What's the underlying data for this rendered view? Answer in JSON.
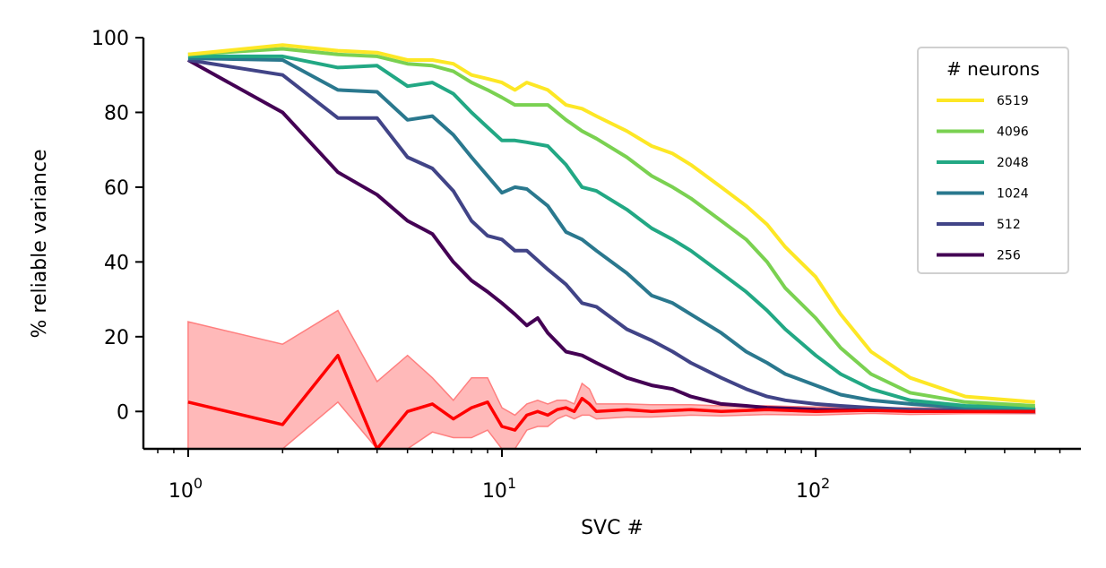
{
  "chart_data": {
    "type": "line",
    "xlabel": "SVC #",
    "ylabel": "% reliable variance",
    "xscale": "log",
    "xlim": [
      0.72,
      700
    ],
    "ylim": [
      -10,
      100
    ],
    "xticks": [
      {
        "value": 1,
        "base": "10",
        "exp": "0"
      },
      {
        "value": 10,
        "base": "10",
        "exp": "1"
      },
      {
        "value": 100,
        "base": "10",
        "exp": "2"
      }
    ],
    "yticks": [
      0,
      20,
      40,
      60,
      80,
      100
    ],
    "grid": false,
    "legend": {
      "title": "# neurons",
      "position": "top-right"
    },
    "series": [
      {
        "name": "6519",
        "color": "#fde725",
        "points": [
          [
            1,
            95.5
          ],
          [
            2,
            98
          ],
          [
            3,
            96.5
          ],
          [
            4,
            96
          ],
          [
            5,
            94
          ],
          [
            6,
            94
          ],
          [
            7,
            93
          ],
          [
            8,
            90
          ],
          [
            9,
            89
          ],
          [
            10,
            88
          ],
          [
            11,
            86
          ],
          [
            12,
            88
          ],
          [
            14,
            86
          ],
          [
            16,
            82
          ],
          [
            18,
            81
          ],
          [
            20,
            79
          ],
          [
            25,
            75
          ],
          [
            30,
            71
          ],
          [
            35,
            69
          ],
          [
            40,
            66
          ],
          [
            50,
            60
          ],
          [
            60,
            55
          ],
          [
            70,
            50
          ],
          [
            80,
            44
          ],
          [
            100,
            36
          ],
          [
            120,
            26
          ],
          [
            150,
            16
          ],
          [
            200,
            9
          ],
          [
            300,
            4
          ],
          [
            500,
            2.5
          ]
        ]
      },
      {
        "name": "4096",
        "color": "#7ad151",
        "points": [
          [
            1,
            95.5
          ],
          [
            2,
            97
          ],
          [
            3,
            95.5
          ],
          [
            4,
            95
          ],
          [
            5,
            93
          ],
          [
            6,
            92.5
          ],
          [
            7,
            91
          ],
          [
            8,
            88
          ],
          [
            9,
            86
          ],
          [
            10,
            84
          ],
          [
            11,
            82
          ],
          [
            12,
            82
          ],
          [
            14,
            82
          ],
          [
            16,
            78
          ],
          [
            18,
            75
          ],
          [
            20,
            73
          ],
          [
            25,
            68
          ],
          [
            30,
            63
          ],
          [
            35,
            60
          ],
          [
            40,
            57
          ],
          [
            50,
            51
          ],
          [
            60,
            46
          ],
          [
            70,
            40
          ],
          [
            80,
            33
          ],
          [
            100,
            25
          ],
          [
            120,
            17
          ],
          [
            150,
            10
          ],
          [
            200,
            5
          ],
          [
            300,
            2.5
          ],
          [
            500,
            1.5
          ]
        ]
      },
      {
        "name": "2048",
        "color": "#22a884",
        "points": [
          [
            1,
            95
          ],
          [
            2,
            95
          ],
          [
            3,
            92
          ],
          [
            4,
            92.5
          ],
          [
            5,
            87
          ],
          [
            6,
            88
          ],
          [
            7,
            85
          ],
          [
            8,
            80
          ],
          [
            9,
            76
          ],
          [
            10,
            72.5
          ],
          [
            11,
            72.5
          ],
          [
            12,
            72
          ],
          [
            14,
            71
          ],
          [
            16,
            66
          ],
          [
            18,
            60
          ],
          [
            20,
            59
          ],
          [
            25,
            54
          ],
          [
            30,
            49
          ],
          [
            35,
            46
          ],
          [
            40,
            43
          ],
          [
            50,
            37
          ],
          [
            60,
            32
          ],
          [
            70,
            27
          ],
          [
            80,
            22
          ],
          [
            100,
            15
          ],
          [
            120,
            10
          ],
          [
            150,
            6
          ],
          [
            200,
            3
          ],
          [
            300,
            1.5
          ],
          [
            500,
            1
          ]
        ]
      },
      {
        "name": "1024",
        "color": "#2a788e",
        "points": [
          [
            1,
            94.5
          ],
          [
            2,
            94
          ],
          [
            3,
            86
          ],
          [
            4,
            85.5
          ],
          [
            5,
            78
          ],
          [
            6,
            79
          ],
          [
            7,
            74
          ],
          [
            8,
            68
          ],
          [
            9,
            63
          ],
          [
            10,
            58.5
          ],
          [
            11,
            60
          ],
          [
            12,
            59.5
          ],
          [
            14,
            55
          ],
          [
            16,
            48
          ],
          [
            18,
            46
          ],
          [
            20,
            43
          ],
          [
            25,
            37
          ],
          [
            30,
            31
          ],
          [
            35,
            29
          ],
          [
            40,
            26
          ],
          [
            50,
            21
          ],
          [
            60,
            16
          ],
          [
            70,
            13
          ],
          [
            80,
            10
          ],
          [
            100,
            7
          ],
          [
            120,
            4.5
          ],
          [
            150,
            3
          ],
          [
            200,
            2
          ],
          [
            300,
            1
          ],
          [
            500,
            0.5
          ]
        ]
      },
      {
        "name": "512",
        "color": "#414487",
        "points": [
          [
            1,
            94
          ],
          [
            2,
            90
          ],
          [
            3,
            78.5
          ],
          [
            4,
            78.5
          ],
          [
            5,
            68
          ],
          [
            6,
            65
          ],
          [
            7,
            59
          ],
          [
            8,
            51
          ],
          [
            9,
            47
          ],
          [
            10,
            46
          ],
          [
            11,
            43
          ],
          [
            12,
            43
          ],
          [
            14,
            38
          ],
          [
            16,
            34
          ],
          [
            18,
            29
          ],
          [
            20,
            28
          ],
          [
            25,
            22
          ],
          [
            30,
            19
          ],
          [
            35,
            16
          ],
          [
            40,
            13
          ],
          [
            50,
            9
          ],
          [
            60,
            6
          ],
          [
            70,
            4
          ],
          [
            80,
            3
          ],
          [
            100,
            2
          ],
          [
            120,
            1.5
          ],
          [
            150,
            1
          ],
          [
            200,
            0.5
          ],
          [
            300,
            0.3
          ],
          [
            500,
            0
          ]
        ]
      },
      {
        "name": "256",
        "color": "#440154",
        "points": [
          [
            1,
            94
          ],
          [
            2,
            80
          ],
          [
            3,
            64
          ],
          [
            4,
            58
          ],
          [
            5,
            51
          ],
          [
            6,
            47.5
          ],
          [
            7,
            40
          ],
          [
            8,
            35
          ],
          [
            9,
            32
          ],
          [
            10,
            29
          ],
          [
            11,
            26
          ],
          [
            12,
            23
          ],
          [
            13,
            25
          ],
          [
            14,
            21
          ],
          [
            16,
            16
          ],
          [
            18,
            15
          ],
          [
            20,
            13
          ],
          [
            25,
            9
          ],
          [
            30,
            7
          ],
          [
            35,
            6
          ],
          [
            40,
            4
          ],
          [
            50,
            2
          ],
          [
            60,
            1.5
          ],
          [
            70,
            1
          ],
          [
            80,
            0.8
          ],
          [
            100,
            0.5
          ],
          [
            150,
            0.3
          ],
          [
            200,
            0.2
          ],
          [
            300,
            0.1
          ],
          [
            500,
            0
          ]
        ]
      }
    ],
    "shuffled": {
      "color": "#ff0000",
      "band_color": "#ff7f7f",
      "points": [
        [
          1,
          2.5
        ],
        [
          2,
          -3.5
        ],
        [
          3,
          15
        ],
        [
          4,
          -10
        ],
        [
          5,
          0
        ],
        [
          6,
          2
        ],
        [
          7,
          -2
        ],
        [
          8,
          1
        ],
        [
          9,
          2.5
        ],
        [
          10,
          -4
        ],
        [
          11,
          -5
        ],
        [
          12,
          -1
        ],
        [
          13,
          0
        ],
        [
          14,
          -1
        ],
        [
          15,
          0.5
        ],
        [
          16,
          1
        ],
        [
          17,
          0
        ],
        [
          18,
          3.5
        ],
        [
          19,
          2
        ],
        [
          20,
          0
        ],
        [
          25,
          0.5
        ],
        [
          30,
          0
        ],
        [
          40,
          0.5
        ],
        [
          50,
          0
        ],
        [
          70,
          0.5
        ],
        [
          100,
          0
        ],
        [
          150,
          0.3
        ],
        [
          200,
          0
        ],
        [
          300,
          0
        ],
        [
          500,
          0
        ]
      ],
      "upper": [
        [
          1,
          24
        ],
        [
          2,
          18
        ],
        [
          3,
          27
        ],
        [
          4,
          8
        ],
        [
          5,
          15
        ],
        [
          6,
          9
        ],
        [
          7,
          3
        ],
        [
          8,
          9
        ],
        [
          9,
          9
        ],
        [
          10,
          1
        ],
        [
          11,
          -1
        ],
        [
          12,
          2
        ],
        [
          13,
          3
        ],
        [
          14,
          2
        ],
        [
          15,
          3
        ],
        [
          16,
          3
        ],
        [
          17,
          2
        ],
        [
          18,
          7.5
        ],
        [
          19,
          6
        ],
        [
          20,
          2
        ],
        [
          25,
          2
        ],
        [
          30,
          1.8
        ],
        [
          40,
          1.8
        ],
        [
          50,
          1.5
        ],
        [
          70,
          1.5
        ],
        [
          100,
          1.2
        ],
        [
          150,
          1
        ],
        [
          200,
          1
        ],
        [
          300,
          0.8
        ],
        [
          500,
          0.8
        ]
      ],
      "lower": [
        [
          1,
          -10
        ],
        [
          2,
          -10
        ],
        [
          3,
          2.5
        ],
        [
          4,
          -10
        ],
        [
          5,
          -10
        ],
        [
          6,
          -5.5
        ],
        [
          7,
          -7
        ],
        [
          8,
          -7
        ],
        [
          9,
          -5
        ],
        [
          10,
          -10
        ],
        [
          11,
          -10
        ],
        [
          12,
          -5
        ],
        [
          13,
          -4
        ],
        [
          14,
          -4
        ],
        [
          15,
          -2
        ],
        [
          16,
          -1
        ],
        [
          17,
          -2
        ],
        [
          18,
          -1
        ],
        [
          19,
          -1
        ],
        [
          20,
          -2
        ],
        [
          25,
          -1.5
        ],
        [
          30,
          -1.5
        ],
        [
          40,
          -1
        ],
        [
          50,
          -1.2
        ],
        [
          70,
          -0.8
        ],
        [
          100,
          -1
        ],
        [
          150,
          -0.5
        ],
        [
          200,
          -0.8
        ],
        [
          300,
          -0.6
        ],
        [
          500,
          -0.6
        ]
      ]
    }
  }
}
